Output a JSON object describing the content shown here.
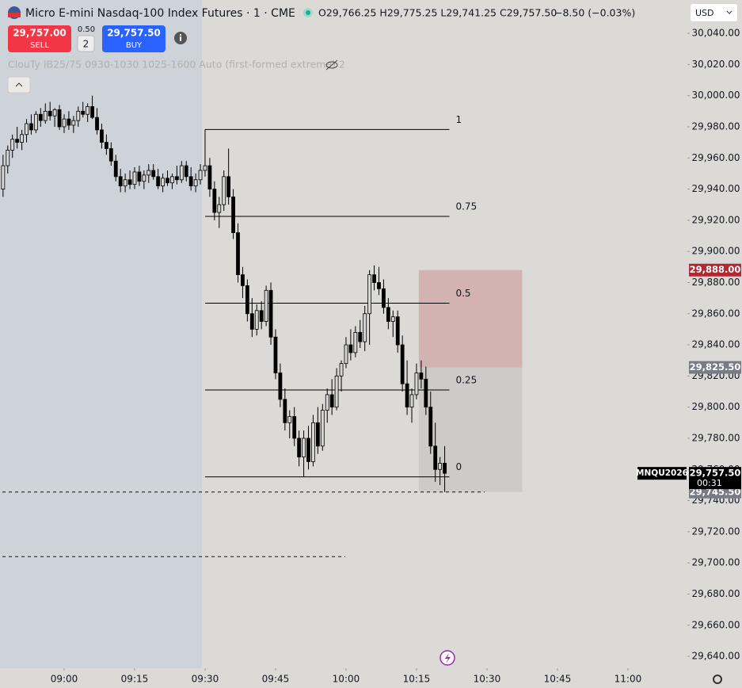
{
  "header": {
    "symbol": "Micro E-mini Nasdaq-100 Index Futures · 1 · CME",
    "ohlc": "O29,766.25 H29,775.25 L29,741.25 C29,757.50",
    "change": "−8.50 (−0.03%)"
  },
  "trade": {
    "sell_price": "29,757.00",
    "sell": "SELL",
    "spread": "0.50",
    "quantity": "2",
    "buy_price": "29,757.50",
    "buy": "BUY"
  },
  "indicator": "ClouTy IB25/75 0930-1030 1025-1600 Auto (first-formed extreme) 2",
  "currency": "USD",
  "chart_data": {
    "type": "candlestick",
    "up_color": "#d6d6d6",
    "down_color": "#000000",
    "x": [
      527,
      528,
      529,
      530,
      531,
      532,
      533,
      534,
      535,
      536,
      537,
      538,
      539,
      540,
      541,
      542,
      543,
      544,
      545,
      546,
      547,
      548,
      549,
      550,
      551,
      552,
      553,
      554,
      555,
      556,
      557,
      558,
      559,
      560,
      561,
      562,
      563,
      564,
      565,
      566,
      567,
      568,
      569,
      570,
      571,
      572,
      573,
      574,
      575,
      576,
      577,
      578,
      579,
      580,
      581,
      582,
      583,
      584,
      585,
      586,
      587,
      588,
      589,
      590,
      591,
      592,
      593,
      594,
      595,
      596,
      597,
      598,
      599,
      600,
      601,
      602,
      603,
      604,
      605,
      606,
      607,
      608,
      609,
      610,
      611,
      612,
      613,
      614,
      615,
      616,
      617,
      618,
      619,
      620,
      621
    ],
    "open": [
      29940,
      29955,
      29965,
      29972,
      29970,
      29975,
      29982,
      29978,
      29988,
      29984,
      29990,
      29987,
      29991,
      29980,
      29985,
      29981,
      29984,
      29990,
      29988,
      29993,
      29986,
      29978,
      29970,
      29966,
      29958,
      29948,
      29942,
      29946,
      29943,
      29951,
      29945,
      29949,
      29952,
      29948,
      29942,
      29947,
      29944,
      29948,
      29946,
      29955,
      29948,
      29942,
      29946,
      29952,
      29955,
      29940,
      29925,
      29930,
      29948,
      29935,
      29912,
      29885,
      29878,
      29860,
      29850,
      29862,
      29855,
      29875,
      29845,
      29822,
      29805,
      29790,
      29794,
      29780,
      29768,
      29780,
      29765,
      29790,
      29775,
      29798,
      29808,
      29800,
      29820,
      29828,
      29840,
      29835,
      29848,
      29842,
      29860,
      29885,
      29880,
      29876,
      29864,
      29855,
      29858,
      29840,
      29815,
      29800,
      29808,
      29822,
      29818,
      29800,
      29775,
      29760,
      29764
    ],
    "high": [
      29962,
      29968,
      29975,
      29980,
      29978,
      29985,
      29988,
      29990,
      29992,
      29995,
      29996,
      29992,
      29994,
      29988,
      29990,
      29987,
      29993,
      29996,
      29995,
      30000,
      29992,
      29982,
      29975,
      29970,
      29962,
      29953,
      29950,
      29952,
      29954,
      29955,
      29952,
      29956,
      29956,
      29953,
      29950,
      29952,
      29950,
      29955,
      29958,
      29958,
      29954,
      29950,
      29956,
      29978.25,
      29960,
      29945,
      29935,
      29952,
      29966,
      29940,
      29918,
      29890,
      29882,
      29870,
      29866,
      29868,
      29878,
      29880,
      29850,
      29828,
      29812,
      29798,
      29800,
      29785,
      29785,
      29788,
      29795,
      29800,
      29802,
      29812,
      29818,
      29825,
      29830,
      29845,
      29850,
      29852,
      29856,
      29865,
      29888,
      29891,
      29890,
      29882,
      29870,
      29862,
      29862,
      29846,
      29830,
      29812,
      29828,
      29830,
      29826,
      29810,
      29790,
      29768,
      29775
    ],
    "low": [
      29935,
      29950,
      29960,
      29966,
      29965,
      29970,
      29975,
      29976,
      29980,
      29982,
      29984,
      29980,
      29978,
      29976,
      29978,
      29976,
      29980,
      29986,
      29983,
      29985,
      29975,
      29966,
      29962,
      29955,
      29945,
      29938,
      29938,
      29940,
      29940,
      29942,
      29940,
      29944,
      29946,
      29940,
      29938,
      29942,
      29940,
      29943,
      29944,
      29945,
      29939,
      29938,
      29943,
      29948,
      29935,
      29920,
      29915,
      29926,
      29930,
      29908,
      29880,
      29870,
      29855,
      29845,
      29846,
      29850,
      29852,
      29840,
      29818,
      29800,
      29785,
      29780,
      29775,
      29762,
      29755.25,
      29760,
      29762,
      29770,
      29772,
      29790,
      29795,
      29798,
      29810,
      29825,
      29830,
      29832,
      29838,
      29836,
      29840,
      29875,
      29872,
      29860,
      29850,
      29845,
      29835,
      29810,
      29795,
      29790,
      29805,
      29812,
      29795,
      29770,
      29752,
      29750,
      29745.5
    ],
    "close": [
      29955,
      29965,
      29972,
      29970,
      29975,
      29982,
      29978,
      29988,
      29984,
      29990,
      29987,
      29991,
      29980,
      29985,
      29981,
      29984,
      29990,
      29988,
      29993,
      29986,
      29978,
      29970,
      29966,
      29958,
      29948,
      29942,
      29946,
      29943,
      29951,
      29945,
      29949,
      29952,
      29948,
      29942,
      29947,
      29944,
      29948,
      29946,
      29955,
      29948,
      29942,
      29946,
      29952,
      29955,
      29940,
      29925,
      29930,
      29948,
      29935,
      29912,
      29885,
      29878,
      29860,
      29850,
      29862,
      29855,
      29875,
      29845,
      29822,
      29805,
      29790,
      29794,
      29780,
      29768,
      29780,
      29765,
      29790,
      29775,
      29798,
      29808,
      29800,
      29820,
      29828,
      29840,
      29835,
      29848,
      29842,
      29860,
      29885,
      29880,
      29876,
      29864,
      29855,
      29858,
      29840,
      29815,
      29800,
      29808,
      29822,
      29818,
      29800,
      29775,
      29760,
      29764,
      29757.5
    ],
    "xlim": [
      526.35,
      672.65
    ],
    "xticks": [
      {
        "value": 540,
        "label": "09:00"
      },
      {
        "value": 555,
        "label": "09:15"
      },
      {
        "value": 570,
        "label": "09:30"
      },
      {
        "value": 585,
        "label": "09:45"
      },
      {
        "value": 600,
        "label": "10:00"
      },
      {
        "value": 615,
        "label": "10:15"
      },
      {
        "value": 630,
        "label": "10:30"
      },
      {
        "value": 645,
        "label": "10:45"
      },
      {
        "value": 660,
        "label": "11:00"
      }
    ],
    "ylim": [
      29632.4,
      30061.4
    ],
    "yticks": [
      {
        "value": 29640,
        "label": "29,640.00"
      },
      {
        "value": 29660,
        "label": "29,660.00"
      },
      {
        "value": 29680,
        "label": "29,680.00"
      },
      {
        "value": 29700,
        "label": "29,700.00"
      },
      {
        "value": 29720,
        "label": "29,720.00"
      },
      {
        "value": 29740,
        "label": "29,740.00"
      },
      {
        "value": 29760,
        "label": "29,760.00"
      },
      {
        "value": 29780,
        "label": "29,780.00"
      },
      {
        "value": 29800,
        "label": "29,800.00"
      },
      {
        "value": 29820,
        "label": "29,820.00"
      },
      {
        "value": 29840,
        "label": "29,840.00"
      },
      {
        "value": 29860,
        "label": "29,860.00"
      },
      {
        "value": 29880,
        "label": "29,880.00"
      },
      {
        "value": 29900,
        "label": "29,900.00"
      },
      {
        "value": 29920,
        "label": "29,920.00"
      },
      {
        "value": 29940,
        "label": "29,940.00"
      },
      {
        "value": 29960,
        "label": "29,960.00"
      },
      {
        "value": 29980,
        "label": "29,980.00"
      },
      {
        "value": 30000,
        "label": "30,000.00"
      },
      {
        "value": 30020,
        "label": "30,020.00"
      },
      {
        "value": 30040,
        "label": "30,040.00"
      }
    ],
    "fib": {
      "levels": [
        1,
        0.75,
        0.5,
        0.25,
        0
      ],
      "prices": [
        29978.25,
        29922.5,
        29866.75,
        29811,
        29755.25
      ],
      "start": 570,
      "end": 622
    },
    "position": {
      "values": [
        29888,
        29825.5,
        29745.5
      ],
      "value_labels": [
        "29,888.00",
        "29,825.50",
        "29,745.50"
      ],
      "colors": [
        "#b22833",
        "#787b86",
        "#787b86"
      ],
      "start": 615.5,
      "end": 637.5
    },
    "dashed_levels": [
      29745.5,
      29704
    ],
    "last_price": {
      "symbol": "MNQU2026",
      "value": 29757.5,
      "value_label": "29,757.50",
      "countdown": "00:31"
    }
  }
}
